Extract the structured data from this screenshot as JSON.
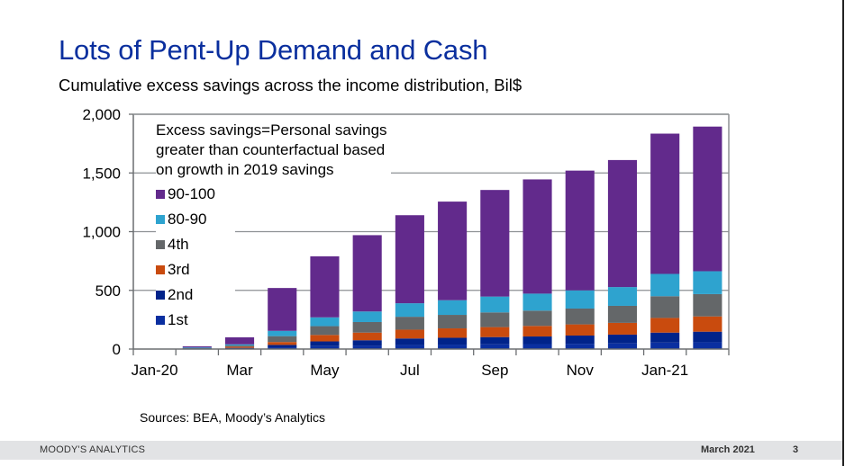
{
  "header": {
    "title": "Lots of Pent-Up Demand and Cash",
    "subtitle": "Cumulative excess savings across the income distribution, Bil$"
  },
  "source": "Sources: BEA, Moody’s Analytics",
  "footer": {
    "brand": "MOODY'S ANALYTICS",
    "date": "March 2021",
    "page": "3"
  },
  "chart_data": {
    "type": "bar",
    "stacked": true,
    "title": "Cumulative excess savings across the income distribution, Bil$",
    "xlabel": "",
    "ylabel": "",
    "ylim": [
      0,
      2000
    ],
    "yticks": [
      0,
      500,
      1000,
      1500,
      2000
    ],
    "ytick_labels": [
      "0",
      "500",
      "1,000",
      "1,500",
      "2,000"
    ],
    "grid": true,
    "legend_position": "top-left",
    "annotation": "Excess savings=Personal savings greater than counterfactual based on growth in 2019 savings",
    "annotation_lines": [
      "Excess savings=Personal savings",
      "greater than counterfactual based",
      "on growth in 2019 savings"
    ],
    "categories": [
      "Jan-20",
      "Feb",
      "Mar",
      "Apr",
      "May",
      "Jun",
      "Jul",
      "Aug",
      "Sep",
      "Oct",
      "Nov",
      "Dec",
      "Jan-21",
      "Feb"
    ],
    "xtick_labels": [
      "Jan-20",
      "",
      "Mar",
      "",
      "May",
      "",
      "Jul",
      "",
      "Sep",
      "",
      "Nov",
      "",
      "Jan-21",
      ""
    ],
    "series": [
      {
        "name": "1st",
        "color": "#0a2fa0",
        "values": [
          0,
          2,
          5,
          15,
          25,
          30,
          35,
          38,
          40,
          42,
          45,
          48,
          55,
          58
        ]
      },
      {
        "name": "2nd",
        "color": "#00238a",
        "values": [
          0,
          2,
          5,
          20,
          40,
          45,
          55,
          58,
          62,
          65,
          70,
          75,
          85,
          90
        ]
      },
      {
        "name": "3rd",
        "color": "#c94b0e",
        "values": [
          0,
          3,
          10,
          25,
          55,
          65,
          75,
          80,
          85,
          90,
          95,
          100,
          125,
          130
        ]
      },
      {
        "name": "4th",
        "color": "#646769",
        "values": [
          0,
          3,
          10,
          50,
          75,
          90,
          110,
          115,
          125,
          130,
          135,
          145,
          185,
          190
        ]
      },
      {
        "name": "80-90",
        "color": "#2ea3cf",
        "values": [
          0,
          3,
          10,
          45,
          75,
          90,
          115,
          125,
          135,
          145,
          155,
          160,
          190,
          195
        ]
      },
      {
        "name": "90-100",
        "color": "#622a8c",
        "values": [
          0,
          10,
          60,
          365,
          520,
          650,
          750,
          840,
          908,
          973,
          1020,
          1082,
          1195,
          1232
        ]
      }
    ]
  }
}
